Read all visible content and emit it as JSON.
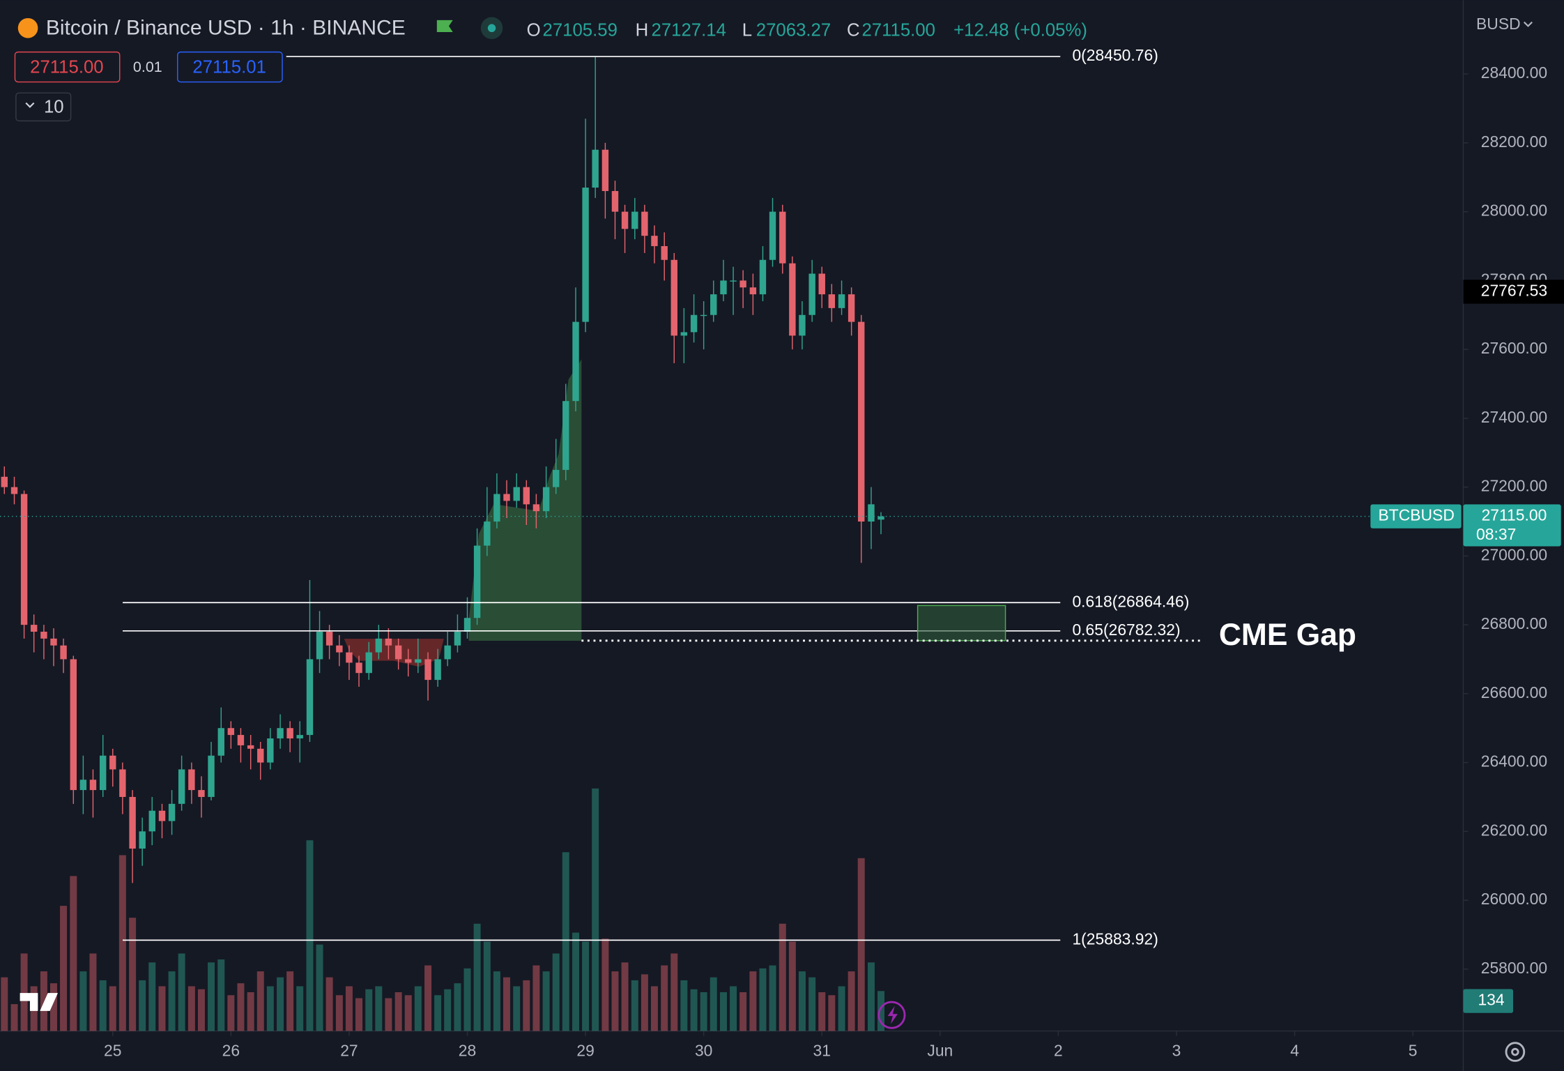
{
  "header": {
    "symbol": "Bitcoin / Binance USD · 1h · BINANCE",
    "o_label": "O",
    "o": "27105.59",
    "h_label": "H",
    "h": "27127.14",
    "l_label": "L",
    "l": "27063.27",
    "c_label": "C",
    "c": "27115.00",
    "change": "+12.48 (+0.05%)"
  },
  "trade": {
    "sell": "27115.00",
    "spread": "0.01",
    "buy": "27115.01",
    "quantity": "10"
  },
  "currency": "BUSD",
  "chart_data": {
    "type": "candlestick",
    "x": [
      24.083,
      24.167,
      24.25,
      24.333,
      24.417,
      24.5,
      24.583,
      24.667,
      24.75,
      24.833,
      24.917,
      25,
      25.083,
      25.167,
      25.25,
      25.333,
      25.417,
      25.5,
      25.583,
      25.667,
      25.75,
      25.833,
      25.917,
      26,
      26.083,
      26.167,
      26.25,
      26.333,
      26.417,
      26.5,
      26.583,
      26.667,
      26.75,
      26.833,
      26.917,
      27,
      27.083,
      27.167,
      27.25,
      27.333,
      27.417,
      27.5,
      27.583,
      27.667,
      27.75,
      27.833,
      27.917,
      28,
      28.083,
      28.167,
      28.25,
      28.333,
      28.417,
      28.5,
      28.583,
      28.667,
      28.75,
      28.833,
      28.917,
      29,
      29.083,
      29.167,
      29.25,
      29.333,
      29.417,
      29.5,
      29.583,
      29.667,
      29.75,
      29.833,
      29.917,
      30,
      30.083,
      30.167,
      30.25,
      30.333,
      30.417,
      30.5,
      30.583,
      30.667,
      30.75,
      30.833,
      30.917,
      31,
      31.083,
      31.167,
      31.25,
      31.333,
      31.417,
      31.5
    ],
    "open": [
      27230,
      27200,
      27180,
      26800,
      26780,
      26760,
      26740,
      26700,
      26320,
      26350,
      26320,
      26420,
      26380,
      26300,
      26150,
      26200,
      26260,
      26230,
      26280,
      26380,
      26320,
      26300,
      26420,
      26500,
      26480,
      26450,
      26440,
      26400,
      26470,
      26500,
      26470,
      26480,
      26700,
      26780,
      26740,
      26720,
      26690,
      26660,
      26720,
      26760,
      26740,
      26700,
      26690,
      26700,
      26640,
      26700,
      26740,
      26780,
      26820,
      27030,
      27100,
      27180,
      27160,
      27200,
      27150,
      27130,
      27200,
      27250,
      27450,
      27680,
      28070,
      28180,
      28060,
      28000,
      27950,
      28000,
      27930,
      27900,
      27860,
      27640,
      27650,
      27700,
      27700,
      27760,
      27800,
      27800,
      27780,
      27760,
      27860,
      28000,
      27850,
      27640,
      27700,
      27820,
      27760,
      27720,
      27760,
      27680,
      27100,
      27105.59
    ],
    "high": [
      27260,
      27230,
      27190,
      26830,
      26800,
      26790,
      26760,
      26710,
      26420,
      26380,
      26480,
      26440,
      26400,
      26320,
      26240,
      26300,
      26280,
      26320,
      26420,
      26400,
      26360,
      26460,
      26560,
      26520,
      26500,
      26480,
      26460,
      26500,
      26540,
      26520,
      26520,
      26930,
      26840,
      26800,
      26770,
      26740,
      26710,
      26750,
      26800,
      26790,
      26760,
      26730,
      26760,
      26720,
      26730,
      26780,
      26830,
      26880,
      27080,
      27200,
      27240,
      27220,
      27240,
      27220,
      27180,
      27260,
      27340,
      27500,
      27780,
      28270,
      28450.76,
      28200,
      28090,
      28020,
      28040,
      28020,
      27960,
      27940,
      27880,
      27720,
      27760,
      27740,
      27800,
      27860,
      27840,
      27830,
      27820,
      27900,
      28040,
      28020,
      27870,
      27740,
      27860,
      27840,
      27790,
      27800,
      27780,
      27700,
      27200,
      27127.14
    ],
    "low": [
      27180,
      27150,
      26760,
      26720,
      26700,
      26680,
      26660,
      26280,
      26250,
      26240,
      26300,
      26330,
      26250,
      26050,
      26100,
      26160,
      26180,
      26190,
      26260,
      26280,
      26240,
      26290,
      26400,
      26440,
      26400,
      26380,
      26350,
      26380,
      26440,
      26430,
      26400,
      26460,
      26660,
      26700,
      26680,
      26640,
      26620,
      26640,
      26700,
      26700,
      26670,
      26650,
      26660,
      26580,
      26620,
      26680,
      26720,
      26760,
      26800,
      27000,
      27080,
      27110,
      27140,
      27090,
      27080,
      27110,
      27180,
      27220,
      27420,
      27650,
      28040,
      27980,
      27920,
      27880,
      27920,
      27880,
      27850,
      27800,
      27560,
      27560,
      27620,
      27600,
      27680,
      27740,
      27700,
      27720,
      27700,
      27740,
      27840,
      27820,
      27600,
      27600,
      27680,
      27720,
      27680,
      27700,
      27640,
      26980,
      27020,
      27063.27
    ],
    "close": [
      27200,
      27180,
      26800,
      26780,
      26760,
      26740,
      26700,
      26320,
      26350,
      26320,
      26420,
      26380,
      26300,
      26150,
      26200,
      26260,
      26230,
      26280,
      26380,
      26320,
      26300,
      26420,
      26500,
      26480,
      26450,
      26440,
      26400,
      26470,
      26500,
      26470,
      26480,
      26700,
      26780,
      26740,
      26720,
      26690,
      26660,
      26720,
      26760,
      26740,
      26700,
      26690,
      26700,
      26640,
      26700,
      26740,
      26780,
      26820,
      27030,
      27100,
      27180,
      27160,
      27200,
      27150,
      27130,
      27200,
      27250,
      27450,
      27680,
      28070,
      28180,
      28060,
      28000,
      27950,
      28000,
      27930,
      27900,
      27860,
      27640,
      27650,
      27700,
      27700,
      27760,
      27800,
      27800,
      27780,
      27760,
      27860,
      28000,
      27850,
      27640,
      27700,
      27820,
      27760,
      27720,
      27760,
      27680,
      27100,
      27150,
      27115
    ],
    "volume": [
      180,
      90,
      260,
      150,
      200,
      160,
      420,
      520,
      200,
      260,
      170,
      150,
      590,
      380,
      170,
      230,
      150,
      200,
      260,
      150,
      140,
      230,
      240,
      120,
      160,
      130,
      200,
      150,
      180,
      200,
      150,
      640,
      290,
      180,
      120,
      150,
      110,
      140,
      150,
      110,
      130,
      120,
      150,
      220,
      120,
      140,
      160,
      210,
      360,
      300,
      200,
      180,
      150,
      170,
      220,
      200,
      260,
      600,
      330,
      300,
      814,
      310,
      200,
      230,
      170,
      190,
      150,
      220,
      260,
      170,
      140,
      130,
      180,
      130,
      150,
      130,
      200,
      210,
      220,
      360,
      300,
      200,
      180,
      130,
      120,
      150,
      200,
      580,
      230,
      134
    ],
    "up_color": "#2fa58f",
    "down_color": "#e4646d",
    "xlim": [
      24.046,
      36.418
    ],
    "xticks": [
      25,
      26,
      27,
      28,
      29,
      30,
      31,
      {
        "value": 32,
        "label": "Jun"
      },
      {
        "value": 33,
        "label": "2"
      },
      {
        "value": 34,
        "label": "3"
      },
      {
        "value": 35,
        "label": "4"
      },
      {
        "value": 36,
        "label": "5"
      }
    ],
    "ylim": [
      25620.3,
      28614.5
    ],
    "yticks": [
      {
        "value": 28400,
        "label": "28400.00"
      },
      {
        "value": 28200,
        "label": "28200.00"
      },
      {
        "value": 28000,
        "label": "28000.00"
      },
      {
        "value": 27800,
        "label": "27800.00"
      },
      {
        "value": 27600,
        "label": "27600.00"
      },
      {
        "value": 27400,
        "label": "27400.00"
      },
      {
        "value": 27200,
        "label": "27200.00"
      },
      {
        "value": 27000,
        "label": "27000.00"
      },
      {
        "value": 26800,
        "label": "26800.00"
      },
      {
        "value": 26600,
        "label": "26600.00"
      },
      {
        "value": 26400,
        "label": "26400.00"
      },
      {
        "value": 26200,
        "label": "26200.00"
      },
      {
        "value": 26000,
        "label": "26000.00"
      },
      {
        "value": 25800,
        "label": "25800.00"
      }
    ],
    "fib_levels": [
      {
        "label": "0(28450.76)",
        "value": 28450.76
      },
      {
        "label": "0.618(26864.46)",
        "value": 26864.46
      },
      {
        "label": "0.65(26782.32)",
        "value": 26782.32
      },
      {
        "label": "1(25883.92)",
        "value": 25883.92
      }
    ],
    "cme_gap": {
      "label": "CME Gap",
      "low": 26754,
      "high": 26856
    },
    "last_price": {
      "value": 27115,
      "label": "27115.00"
    },
    "symbol_tag": "BTCBUSD",
    "countdown": "08:37",
    "crosshair_price": 27767.53
  }
}
